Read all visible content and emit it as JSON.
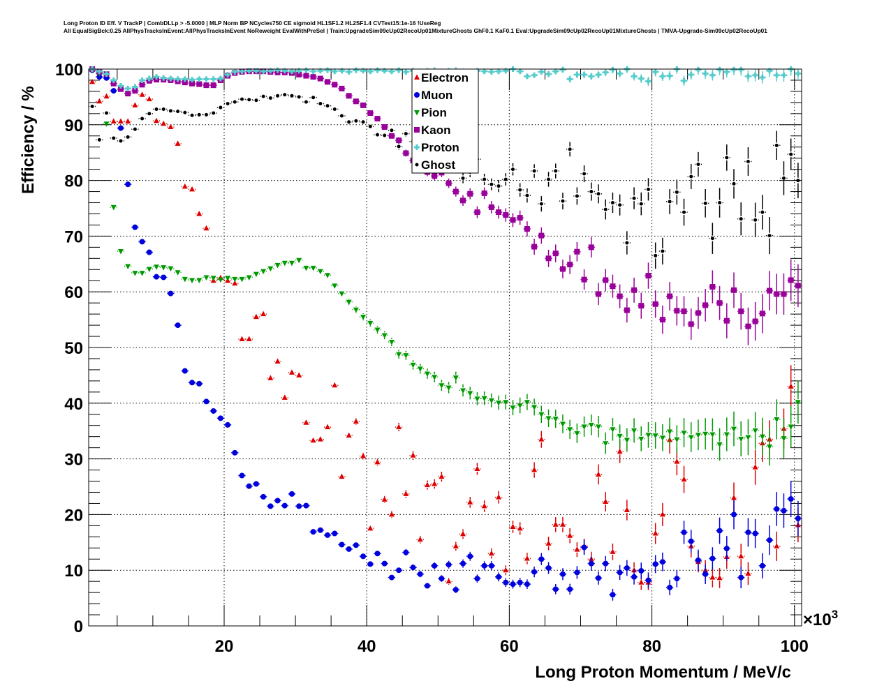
{
  "chart_data": {
    "type": "scatter",
    "title_lines": [
      "Long Proton ID Eff. V TrackP | CombDLLp > -5.0000 | MLP Norm BP NCycles750 CE sigmoid HL1SF1.2 HL2SF1.4 CVTest15:1e-16 !UseReg",
      "All EqualSigBck:0.25 AllPhysTracksInEvent:AllPhysTracksInEvent NoReweight EvalWithPreSel | Train:UpgradeSim09cUp02RecoUp01MixtureGhosts GhF0.1 KaF0.1 Eval:UpgradeSim09cUp02RecoUp01MixtureGhosts | TMVA-Upgrade-Sim09cUp02RecoUp01"
    ],
    "xlabel": "Long Proton Momentum / MeV/c",
    "x_exponent_label": "×10",
    "x_exponent": "3",
    "ylabel": "Efficiency / %",
    "xlim": [
      1,
      101
    ],
    "ylim": [
      0,
      100
    ],
    "x_ticks": [
      20,
      40,
      60,
      80,
      100
    ],
    "x_tick_labels": [
      "20",
      "40",
      "60",
      "80",
      "100"
    ],
    "y_ticks": [
      0,
      10,
      20,
      30,
      40,
      50,
      60,
      70,
      80,
      90,
      100
    ],
    "y_tick_labels": [
      "0",
      "10",
      "20",
      "30",
      "40",
      "50",
      "60",
      "70",
      "80",
      "90",
      "100"
    ],
    "grid": true,
    "legend_position": "top-center",
    "x_start": 1.5,
    "x_step": 1,
    "series": [
      {
        "name": "Electron",
        "color": "#dd0000",
        "marker": "triangle-up",
        "values": [
          97.7,
          94.2,
          95.1,
          90.6,
          90.6,
          90.6,
          93.5,
          95.4,
          94.6,
          90.7,
          90.2,
          89.6,
          86.6,
          78.9,
          78.4,
          74.0,
          71.4,
          62.0,
          62.5,
          62.0,
          61.5,
          51.5,
          51.5,
          55.5,
          56.0,
          44.5,
          47.5,
          41.0,
          45.5,
          45.0,
          36.5,
          33.3,
          33.5,
          35.7,
          43.2,
          26.8,
          34.2,
          36.7,
          30.5,
          17.5,
          29.4,
          22.7,
          20.0,
          35.7,
          23.7,
          30.6,
          15.5,
          25.3,
          25.5,
          26.8,
          8.0,
          14.3,
          16.5,
          22.2,
          28.2,
          21.5,
          13.0,
          23.1,
          10.0,
          17.8,
          17.5,
          12.1,
          28.0,
          33.5,
          14.8,
          18.2,
          18.2,
          16.2,
          13.7,
          14.3,
          12.0,
          27.2,
          22.3,
          13.3,
          31.3,
          20.8,
          10.0,
          7.8,
          7.8,
          16.6,
          20.0,
          33.4,
          29.5,
          26.3,
          14.3,
          11.5,
          10.0,
          8.7,
          8.6,
          12.4,
          23.0,
          12.5,
          9.4,
          28.5,
          32.8,
          33.5,
          14.3,
          35.4,
          43.0,
          18.1
        ]
      },
      {
        "name": "Muon",
        "color": "#0000dd",
        "marker": "circle",
        "values": [
          99.8,
          98.6,
          98.4,
          96.1,
          89.4,
          79.3,
          71.6,
          69.0,
          67.1,
          62.7,
          62.6,
          59.7,
          54.0,
          45.8,
          43.7,
          43.5,
          40.3,
          38.6,
          37.3,
          36.1,
          31.1,
          27.0,
          25.1,
          25.5,
          23.2,
          21.5,
          22.5,
          21.6,
          23.7,
          21.5,
          21.6,
          16.9,
          17.2,
          16.3,
          16.6,
          14.6,
          13.8,
          14.5,
          12.5,
          11.1,
          13.0,
          11.2,
          8.7,
          10.0,
          13.2,
          10.5,
          9.3,
          7.2,
          10.8,
          8.5,
          11.0,
          6.5,
          11.2,
          12.5,
          8.5,
          10.8,
          10.8,
          8.8,
          7.8,
          7.5,
          7.8,
          7.5,
          9.7,
          12.0,
          10.4,
          6.6,
          9.3,
          6.6,
          9.6,
          14.1,
          11.2,
          8.6,
          11.2,
          5.6,
          9.6,
          10.4,
          8.8,
          9.9,
          8.2,
          11.1,
          11.5,
          6.9,
          8.5,
          16.8,
          15.2,
          11.8,
          9.3,
          12.1,
          17.1,
          13.9,
          20.0,
          8.7,
          16.8,
          16.6,
          10.8,
          15.4,
          21.0,
          20.7,
          22.8,
          19.3
        ]
      },
      {
        "name": "Pion",
        "color": "#009900",
        "marker": "triangle-down",
        "values": [
          99.9,
          99.2,
          90.2,
          75.2,
          67.3,
          64.6,
          63.4,
          63.4,
          64.1,
          64.5,
          64.4,
          64.2,
          63.5,
          62.3,
          62.1,
          62.1,
          62.6,
          62.5,
          62.2,
          62.5,
          62.3,
          62.3,
          62.6,
          63.2,
          63.7,
          64.2,
          64.8,
          65.2,
          65.2,
          65.7,
          64.3,
          64.3,
          63.7,
          63.0,
          61.1,
          59.7,
          58.2,
          56.8,
          55.5,
          54.4,
          53.2,
          52.2,
          51.0,
          48.8,
          48.6,
          46.9,
          46.2,
          45.3,
          44.7,
          43.2,
          42.8,
          44.6,
          42.3,
          41.8,
          40.8,
          40.9,
          40.5,
          40.1,
          40.2,
          39.2,
          39.6,
          40.2,
          39.3,
          38.0,
          37.3,
          37.2,
          36.3,
          35.3,
          34.6,
          35.8,
          36.1,
          35.8,
          32.8,
          35.3,
          34.1,
          33.4,
          35.1,
          33.6,
          34.3,
          34.2,
          33.8,
          34.9,
          33.5,
          34.7,
          33.9,
          34.3,
          34.5,
          34.4,
          32.6,
          34.4,
          35.4,
          33.6,
          33.9,
          35.1,
          34.0,
          32.2,
          37.1,
          33.7,
          35.8,
          40.2
        ]
      },
      {
        "name": "Kaon",
        "color": "#990099",
        "marker": "square",
        "values": [
          100.0,
          99.5,
          99.1,
          97.4,
          96.4,
          95.6,
          96.1,
          97.2,
          97.9,
          98.1,
          98.1,
          98.0,
          97.8,
          97.6,
          97.4,
          97.3,
          97.1,
          97.1,
          98.0,
          98.8,
          99.3,
          99.5,
          99.6,
          99.6,
          99.6,
          99.5,
          99.4,
          99.4,
          99.3,
          99.0,
          98.8,
          98.6,
          98.3,
          97.7,
          97.2,
          96.5,
          95.2,
          94.2,
          93.5,
          92.1,
          91.1,
          89.6,
          88.0,
          87.2,
          84.9,
          83.6,
          82.5,
          81.5,
          80.8,
          81.4,
          79.5,
          78.0,
          76.4,
          77.6,
          74.3,
          77.7,
          75.2,
          74.3,
          73.8,
          72.9,
          73.3,
          71.3,
          68.1,
          70.1,
          66.0,
          66.9,
          64.1,
          64.9,
          67.2,
          62.2,
          68.0,
          59.6,
          62.1,
          61.0,
          59.2,
          56.7,
          60.3,
          57.5,
          62.9,
          57.8,
          55.0,
          59.2,
          56.6,
          56.5,
          54.2,
          56.2,
          57.6,
          60.9,
          58.0,
          54.8,
          60.3,
          56.5,
          53.8,
          54.7,
          56.1,
          60.2,
          59.6,
          59.6,
          62.1,
          61.1
        ]
      },
      {
        "name": "Proton",
        "color": "#55cccc",
        "marker": "cross",
        "values": [
          100.0,
          99.6,
          99.1,
          98.0,
          97.0,
          96.5,
          96.8,
          98.0,
          98.3,
          98.6,
          98.4,
          98.3,
          98.2,
          98.2,
          98.1,
          98.2,
          98.2,
          98.2,
          98.3,
          99.0,
          99.5,
          99.6,
          99.7,
          99.7,
          99.6,
          99.7,
          99.8,
          99.7,
          99.6,
          99.7,
          99.8,
          99.6,
          99.7,
          99.8,
          99.6,
          99.7,
          99.5,
          99.8,
          99.7,
          99.6,
          99.8,
          99.7,
          99.6,
          99.8,
          99.5,
          99.7,
          99.6,
          99.7,
          99.8,
          99.6,
          99.7,
          99.8,
          99.6,
          99.5,
          99.7,
          99.6,
          99.5,
          99.6,
          99.7,
          100.0,
          99.6,
          98.7,
          98.9,
          99.5,
          99.1,
          99.6,
          99.9,
          98.2,
          99.0,
          99.0,
          98.7,
          99.0,
          99.4,
          99.9,
          99.2,
          100.0,
          98.7,
          98.3,
          97.8,
          99.5,
          98.7,
          98.8,
          100.0,
          97.9,
          99.0,
          99.9,
          99.2,
          98.9,
          99.9,
          99.5,
          99.9,
          99.9,
          98.7,
          98.9,
          98.5,
          99.7,
          98.9,
          98.9,
          100.0,
          99.2
        ]
      },
      {
        "name": "Ghost",
        "color": "#000000",
        "marker": "small-circle",
        "values": [
          93.3,
          87.3,
          92.1,
          87.6,
          87.1,
          87.8,
          89.2,
          91.1,
          92.0,
          92.8,
          92.8,
          92.5,
          92.4,
          92.2,
          91.7,
          91.8,
          91.8,
          92.1,
          93.1,
          93.8,
          94.1,
          94.6,
          94.5,
          94.4,
          95.1,
          94.8,
          95.2,
          95.4,
          95.2,
          95.0,
          94.1,
          94.9,
          93.8,
          93.4,
          92.8,
          91.6,
          90.5,
          90.7,
          90.5,
          89.7,
          88.2,
          88.1,
          89.0,
          86.1,
          88.4,
          87.0,
          86.5,
          86.0,
          85.5,
          84.8,
          84.0,
          82.5,
          80.4,
          81.5,
          83.8,
          80.2,
          79.3,
          79.0,
          80.2,
          82.0,
          78.3,
          77.3,
          81.7,
          75.8,
          80.2,
          81.7,
          76.3,
          85.6,
          77.2,
          81.2,
          78.0,
          77.6,
          74.8,
          76.0,
          75.6,
          68.8,
          76.8,
          75.8,
          78.4,
          66.5,
          67.3,
          76.2,
          77.9,
          74.3,
          80.7,
          82.9,
          75.9,
          69.6,
          76.0,
          84.1,
          79.4,
          73.1,
          83.4,
          72.9,
          74.3,
          70.1,
          86.3,
          80.4,
          84.7,
          80.0
        ]
      }
    ]
  }
}
